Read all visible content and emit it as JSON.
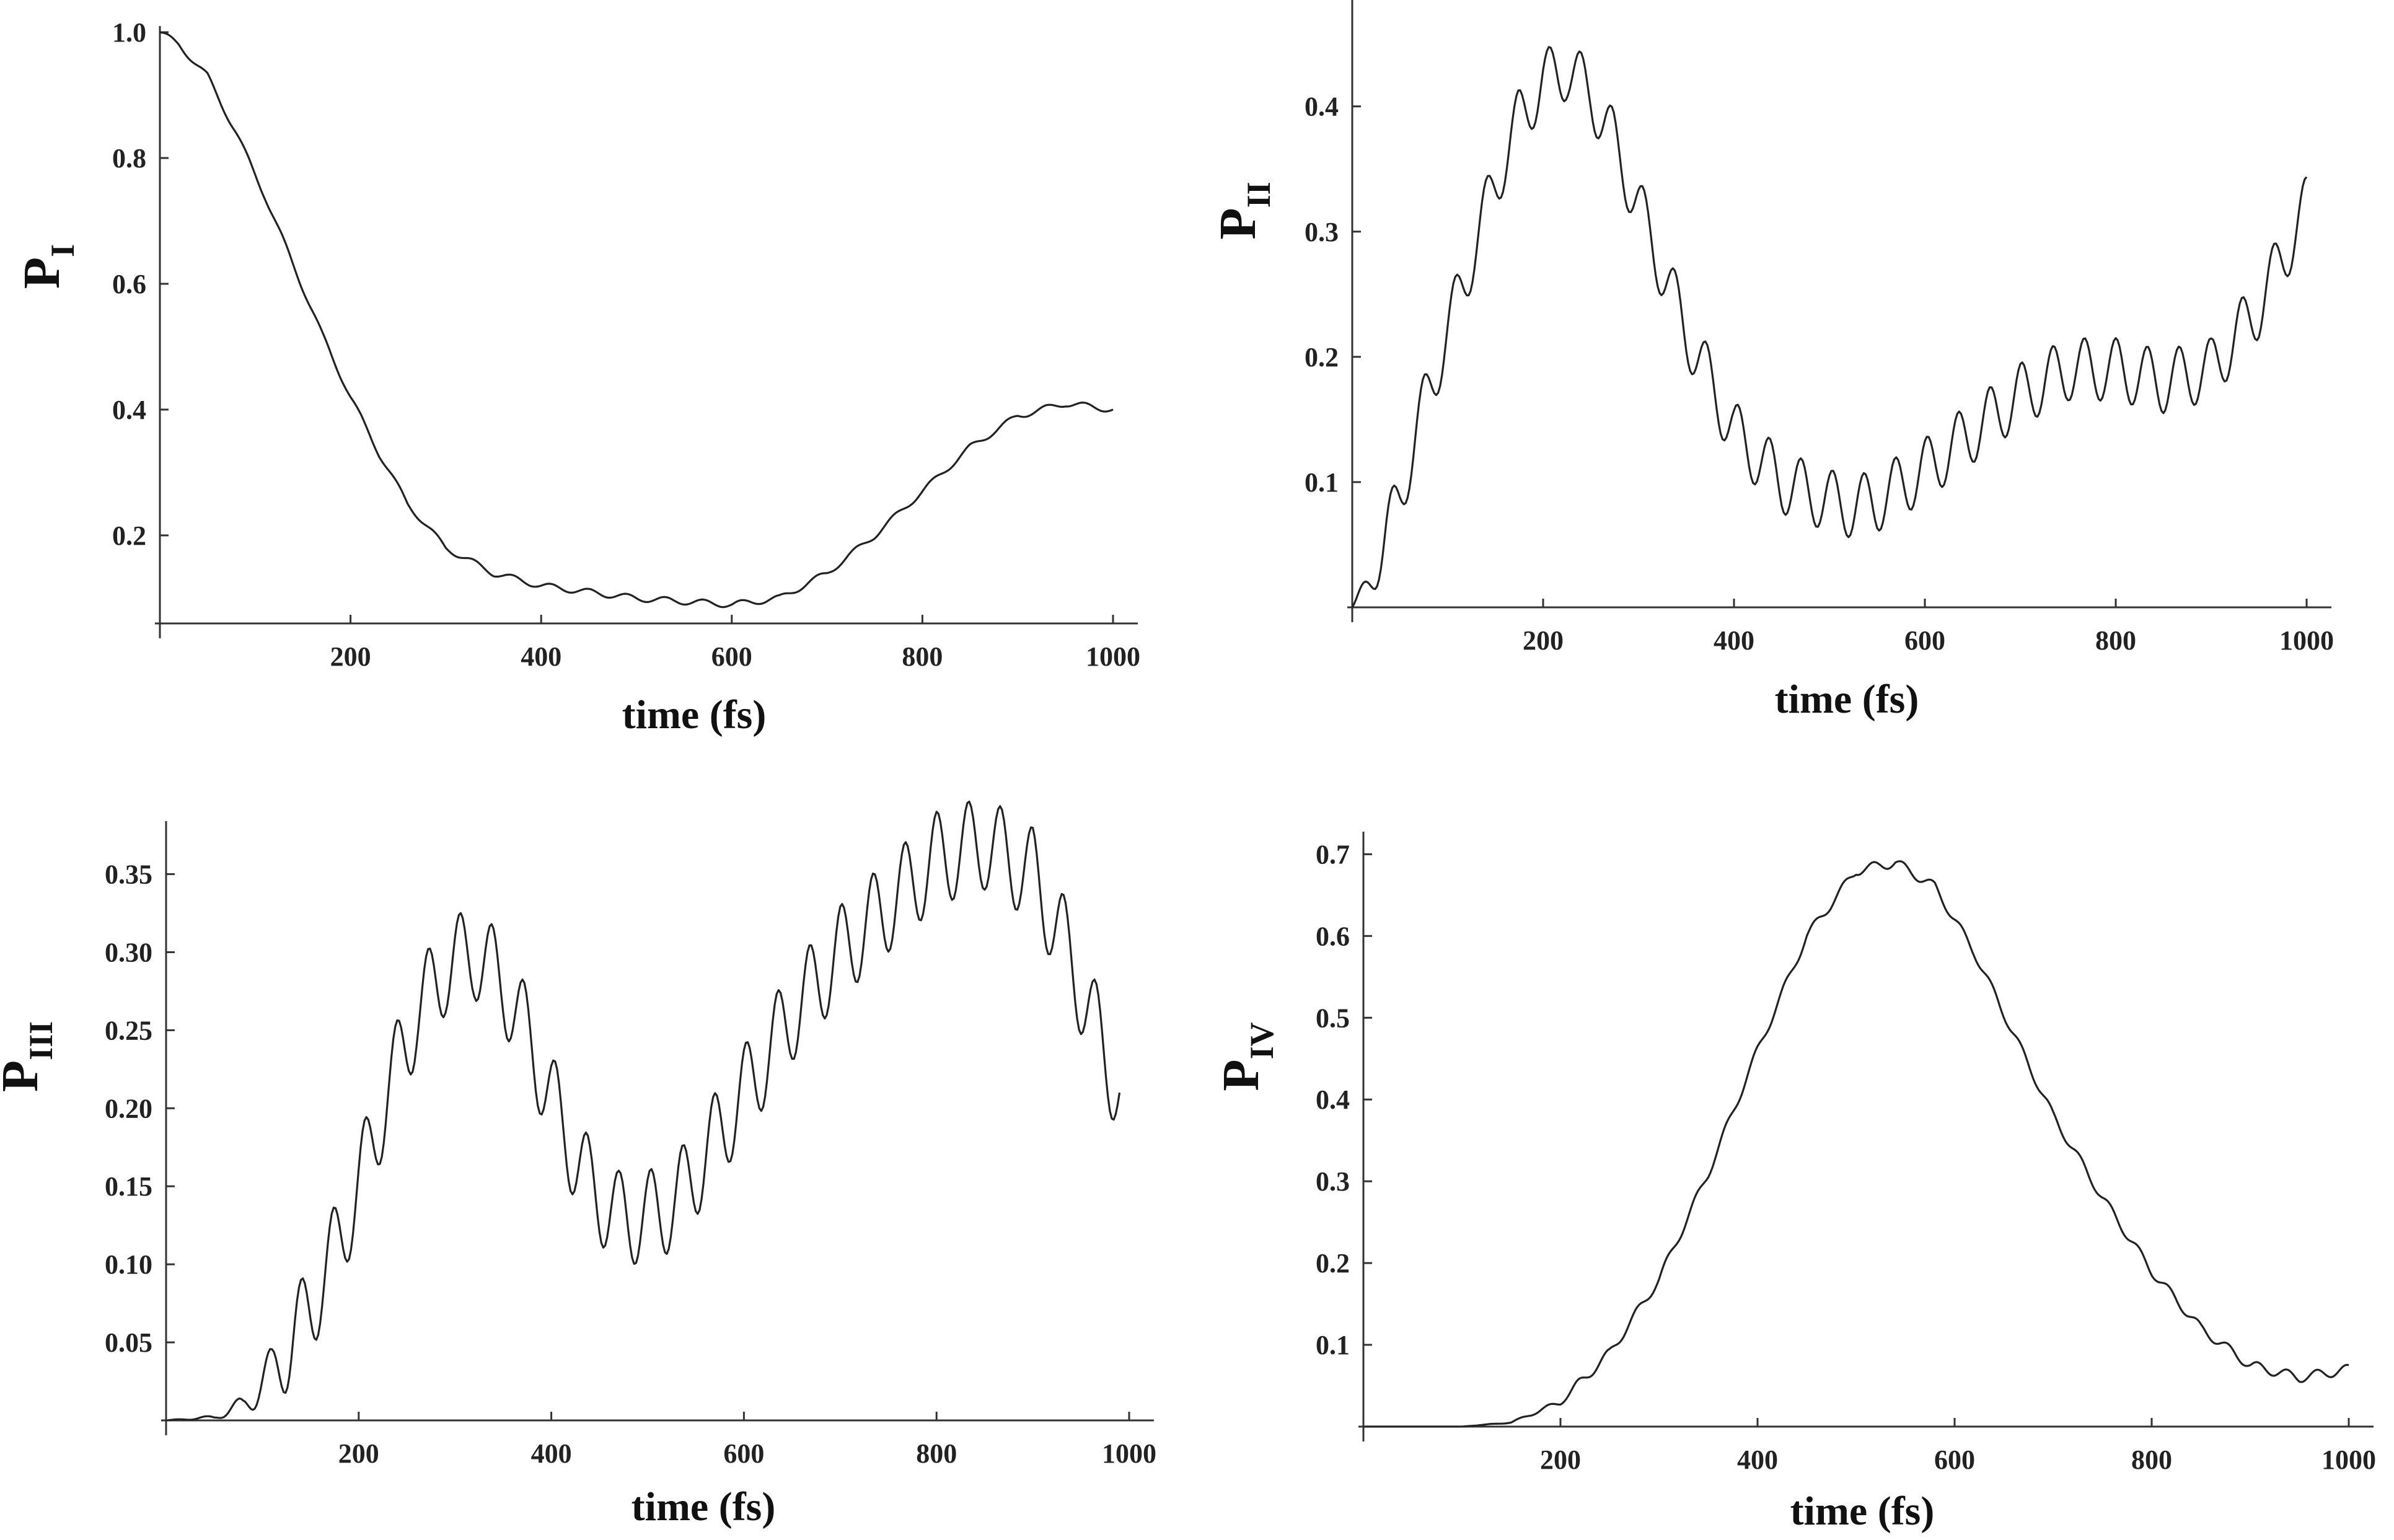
{
  "chart_data": [
    {
      "type": "line",
      "ylabel": "P",
      "ylabel_sub": "I",
      "xlabel": "time (fs)",
      "xlim": [
        0,
        1000
      ],
      "ylim": [
        0.06,
        1.0
      ],
      "xticks": [
        200,
        400,
        600,
        800,
        1000
      ],
      "yticks": [
        "0.2",
        "0.4",
        "0.6",
        "0.8",
        "1.0"
      ],
      "grid": false,
      "wave": {
        "period": 40,
        "amp": 0.005
      },
      "series": [
        {
          "x": [
            0,
            20,
            50,
            80,
            110,
            140,
            170,
            200,
            230,
            260,
            300,
            350,
            400,
            450,
            500,
            550,
            600,
            650,
            700,
            750,
            800,
            850,
            900,
            950,
            1000
          ],
          "y": [
            1.0,
            0.98,
            0.93,
            0.84,
            0.74,
            0.63,
            0.52,
            0.42,
            0.33,
            0.25,
            0.18,
            0.14,
            0.12,
            0.11,
            0.1,
            0.095,
            0.09,
            0.1,
            0.14,
            0.2,
            0.27,
            0.34,
            0.39,
            0.41,
            0.4
          ]
        }
      ]
    },
    {
      "type": "line",
      "ylabel": "P",
      "ylabel_sub": "II",
      "xlabel": "time (fs)",
      "xlim": [
        0,
        1000
      ],
      "ylim": [
        0,
        0.48
      ],
      "xticks": [
        200,
        400,
        600,
        800,
        1000
      ],
      "yticks": [
        "0.1",
        "0.2",
        "0.3",
        "0.4"
      ],
      "grid": false,
      "wave": {
        "period": 33,
        "amp": 0.025
      },
      "series": [
        {
          "x": [
            0,
            25,
            50,
            75,
            100,
            125,
            150,
            175,
            200,
            225,
            250,
            275,
            300,
            325,
            350,
            375,
            400,
            450,
            500,
            525,
            550,
            600,
            650,
            700,
            750,
            800,
            850,
            900,
            950,
            1000
          ],
          "y": [
            0.0,
            0.03,
            0.09,
            0.16,
            0.22,
            0.28,
            0.34,
            0.39,
            0.42,
            0.43,
            0.41,
            0.37,
            0.32,
            0.27,
            0.22,
            0.18,
            0.14,
            0.1,
            0.085,
            0.08,
            0.085,
            0.11,
            0.14,
            0.17,
            0.19,
            0.19,
            0.18,
            0.19,
            0.24,
            0.32
          ]
        }
      ]
    },
    {
      "type": "line",
      "ylabel": "P",
      "ylabel_sub": "III",
      "xlabel": "time (fs)",
      "xlim": [
        0,
        1000
      ],
      "ylim": [
        0,
        0.38
      ],
      "xticks": [
        200,
        400,
        600,
        800,
        1000
      ],
      "yticks": [
        "0.05",
        "0.10",
        "0.15",
        "0.20",
        "0.25",
        "0.30",
        "0.35"
      ],
      "grid": false,
      "wave": {
        "period": 33,
        "amp": 0.03
      },
      "series": [
        {
          "x": [
            0,
            50,
            80,
            110,
            140,
            170,
            200,
            230,
            260,
            290,
            320,
            350,
            380,
            410,
            440,
            470,
            500,
            530,
            560,
            600,
            650,
            700,
            750,
            800,
            850,
            900,
            930,
            960,
            990
          ],
          "y": [
            0.0,
            0.002,
            0.01,
            0.03,
            0.06,
            0.1,
            0.15,
            0.21,
            0.26,
            0.29,
            0.3,
            0.28,
            0.24,
            0.19,
            0.15,
            0.13,
            0.13,
            0.14,
            0.17,
            0.21,
            0.26,
            0.3,
            0.33,
            0.36,
            0.37,
            0.35,
            0.31,
            0.26,
            0.21
          ]
        }
      ]
    },
    {
      "type": "line",
      "ylabel": "P",
      "ylabel_sub": "IV",
      "xlabel": "time (fs)",
      "xlim": [
        0,
        1000
      ],
      "ylim": [
        0,
        0.72
      ],
      "xticks": [
        200,
        400,
        600,
        800,
        1000
      ],
      "yticks": [
        "0.1",
        "0.2",
        "0.3",
        "0.4",
        "0.5",
        "0.6",
        "0.7"
      ],
      "grid": false,
      "wave": {
        "period": 30,
        "amp": 0.006
      },
      "series": [
        {
          "x": [
            0,
            100,
            150,
            200,
            250,
            300,
            350,
            400,
            450,
            500,
            540,
            580,
            620,
            660,
            700,
            750,
            800,
            850,
            900,
            950,
            1000
          ],
          "y": [
            0.0,
            0.0,
            0.005,
            0.03,
            0.09,
            0.18,
            0.31,
            0.46,
            0.6,
            0.68,
            0.69,
            0.66,
            0.58,
            0.48,
            0.38,
            0.28,
            0.19,
            0.12,
            0.075,
            0.06,
            0.07
          ]
        }
      ]
    }
  ]
}
